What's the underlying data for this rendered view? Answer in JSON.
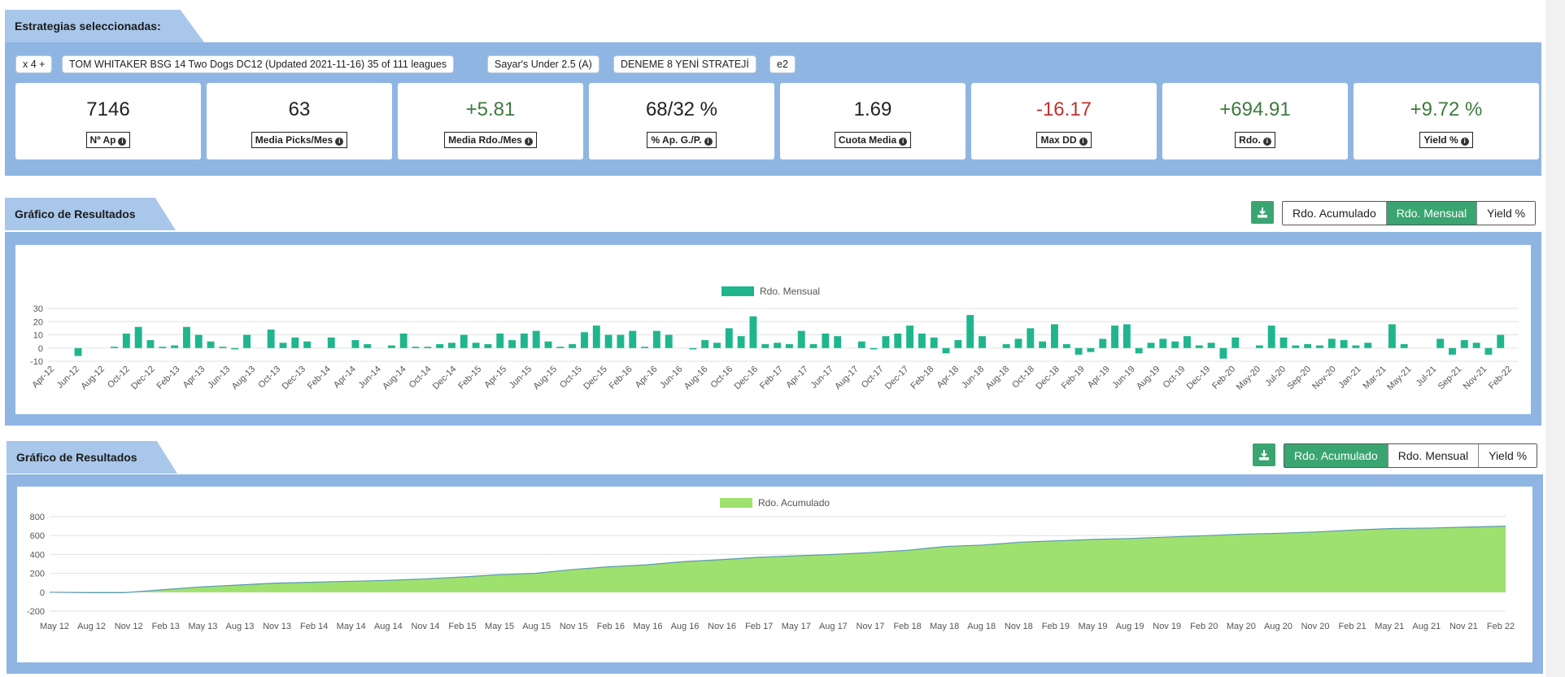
{
  "strategies": {
    "title": "Estrategias seleccionadas:",
    "pills": [
      "x 4 +",
      "TOM WHITAKER BSG 14 Two Dogs DC12 (Updated 2021-11-16) 35 of 111 leagues",
      "Sayar's Under 2.5 (A)",
      "DENEME 8 YENİ STRATEJİ",
      "e2"
    ],
    "stats": [
      {
        "value": "7146",
        "label": "Nº Ap",
        "tone": "neutral"
      },
      {
        "value": "63",
        "label": "Media Picks/Mes",
        "tone": "neutral"
      },
      {
        "value": "+5.81",
        "label": "Media Rdo./Mes",
        "tone": "pos"
      },
      {
        "value": "68/32 %",
        "label": "% Ap. G./P.",
        "tone": "neutral"
      },
      {
        "value": "1.69",
        "label": "Cuota Media",
        "tone": "neutral"
      },
      {
        "value": "-16.17",
        "label": "Max DD",
        "tone": "neg"
      },
      {
        "value": "+694.91",
        "label": "Rdo.",
        "tone": "pos"
      },
      {
        "value": "+9.72 %",
        "label": "Yield %",
        "tone": "pos"
      }
    ],
    "info_icon": "i"
  },
  "colors": {
    "panel": "#8fb6e2",
    "tab": "#a8c7ea",
    "bar": "#1fb68e",
    "area": "#9fe16f",
    "area_line": "#5a9ab0",
    "button_active": "#3aa571",
    "positive": "#3d7a3d",
    "negative": "#c0312f"
  },
  "download_icon": "download-icon",
  "monthly_section": {
    "title": "Gráfico de Resultados",
    "buttons": [
      {
        "label": "Rdo. Acumulado",
        "active": false
      },
      {
        "label": "Rdo. Mensual",
        "active": true
      },
      {
        "label": "Yield %",
        "active": false
      }
    ]
  },
  "cumulative_section": {
    "title": "Gráfico de Resultados",
    "buttons": [
      {
        "label": "Rdo. Acumulado",
        "active": true
      },
      {
        "label": "Rdo. Mensual",
        "active": false
      },
      {
        "label": "Yield %",
        "active": false
      }
    ]
  },
  "chart_data": [
    {
      "type": "bar",
      "legend": "Rdo. Mensual",
      "legend_position": "top-center",
      "ylim": [
        -10,
        30
      ],
      "yticks": [
        30,
        20,
        10,
        0,
        -10
      ],
      "grid": true,
      "x_tick_labels": [
        "Apr-12",
        "Jun-12",
        "Aug-12",
        "Oct-12",
        "Dec-12",
        "Feb-13",
        "Apr-13",
        "Jun-13",
        "Aug-13",
        "Oct-13",
        "Dec-13",
        "Feb-14",
        "Apr-14",
        "Jun-14",
        "Aug-14",
        "Oct-14",
        "Dec-14",
        "Feb-15",
        "Apr-15",
        "Jun-15",
        "Aug-15",
        "Oct-15",
        "Dec-15",
        "Feb-16",
        "Apr-16",
        "Jun-16",
        "Aug-16",
        "Oct-16",
        "Dec-16",
        "Feb-17",
        "Apr-17",
        "Jun-17",
        "Aug-17",
        "Oct-17",
        "Dec-17",
        "Feb-18",
        "Apr-18",
        "Jun-18",
        "Aug-18",
        "Oct-18",
        "Dec-18",
        "Feb-19",
        "Apr-19",
        "Jun-19",
        "Aug-19",
        "Oct-19",
        "Dec-19",
        "Feb-20",
        "May-20",
        "Jul-20",
        "Sep-20",
        "Nov-20",
        "Jan-21",
        "Mar-21",
        "May-21",
        "Jul-21",
        "Sep-21",
        "Nov-21",
        "Feb-22"
      ],
      "values": [
        0,
        0,
        -6,
        0,
        0,
        1,
        11,
        16,
        6,
        1,
        2,
        16,
        10,
        5,
        1,
        -1,
        10,
        0,
        14,
        4,
        8,
        5,
        0,
        8,
        0,
        6,
        3,
        0,
        2,
        11,
        1,
        1,
        3,
        4,
        10,
        4,
        3,
        11,
        6,
        11,
        13,
        5,
        1,
        3,
        12,
        17,
        10,
        10,
        13,
        1,
        13,
        10,
        0,
        -1,
        6,
        4,
        15,
        9,
        24,
        3,
        4,
        3,
        13,
        3,
        11,
        9,
        0,
        5,
        -1,
        9,
        11,
        17,
        11,
        8,
        -4,
        6,
        25,
        9,
        0,
        3,
        7,
        15,
        5,
        18,
        3,
        -5,
        -3,
        7,
        17,
        18,
        -4,
        4,
        7,
        5,
        9,
        2,
        4,
        -8,
        8,
        0,
        2,
        17,
        8,
        2,
        3,
        2,
        7,
        6,
        2,
        4,
        0,
        18,
        3,
        0,
        0,
        7,
        -5,
        6,
        4,
        -5,
        10,
        0
      ]
    },
    {
      "type": "area",
      "legend": "Rdo. Acumulado",
      "legend_position": "top-center",
      "ylim": [
        -200,
        800
      ],
      "yticks": [
        800,
        600,
        400,
        200,
        0,
        -200
      ],
      "grid": true,
      "x_tick_labels": [
        "May 12",
        "Aug 12",
        "Nov 12",
        "Feb 13",
        "May 13",
        "Aug 13",
        "Nov 13",
        "Feb 14",
        "May 14",
        "Aug 14",
        "Nov 14",
        "Feb 15",
        "May 15",
        "Aug 15",
        "Nov 15",
        "Feb 16",
        "May 16",
        "Aug 16",
        "Nov 16",
        "Feb 17",
        "May 17",
        "Aug 17",
        "Nov 17",
        "Feb 18",
        "May 18",
        "Aug 18",
        "Nov 18",
        "Feb 19",
        "May 19",
        "Aug 19",
        "Nov 19",
        "Feb 20",
        "May 20",
        "Aug 20",
        "Nov 20",
        "Feb 21",
        "May 21",
        "Aug 21",
        "Nov 21",
        "Feb 22"
      ],
      "values": [
        0,
        -5,
        -5,
        25,
        55,
        75,
        95,
        105,
        115,
        125,
        140,
        160,
        185,
        200,
        240,
        270,
        290,
        325,
        345,
        370,
        385,
        400,
        420,
        445,
        485,
        500,
        530,
        545,
        560,
        570,
        585,
        600,
        615,
        625,
        640,
        660,
        675,
        680,
        690,
        700
      ]
    }
  ]
}
